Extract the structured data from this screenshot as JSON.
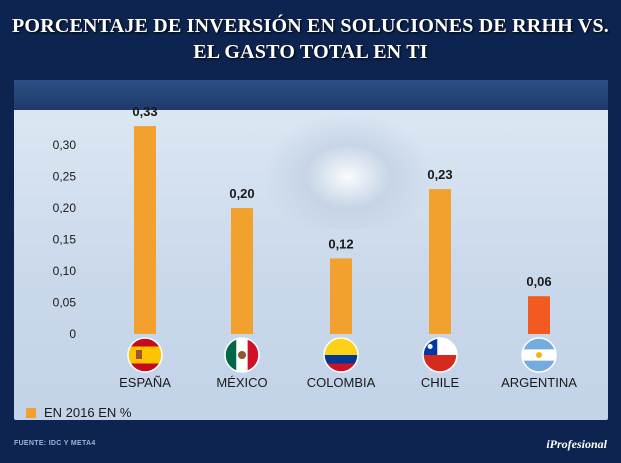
{
  "title": {
    "line1": "PORCENTAJE DE INVERSIÓN EN SOLUCIONES DE RRHH VS.",
    "line2": "EL GASTO TOTAL EN TI"
  },
  "legend": {
    "label": "EN 2016 EN %"
  },
  "footer": {
    "source_label": "FUENTE:",
    "source_text": "IDC Y META4",
    "brand": "iProfesional"
  },
  "colors": {
    "bar": "#f2a12e",
    "bar_highlight": "#f25a22",
    "axis_text": "#1a1a1a"
  },
  "chart_data": {
    "type": "bar",
    "title": "PORCENTAJE DE INVERSIÓN EN SOLUCIONES DE RRHH VS. EL GASTO TOTAL EN TI",
    "categories": [
      "ESPAÑA",
      "MÉXICO",
      "COLOMBIA",
      "CHILE",
      "ARGENTINA"
    ],
    "values": [
      0.33,
      0.2,
      0.12,
      0.23,
      0.06
    ],
    "value_labels": [
      "0,33",
      "0,20",
      "0,12",
      "0,23",
      "0,06"
    ],
    "series": [
      {
        "name": "EN 2016 EN %",
        "values": [
          0.33,
          0.2,
          0.12,
          0.23,
          0.06
        ]
      }
    ],
    "yticks": [
      0,
      0.05,
      0.1,
      0.15,
      0.2,
      0.25,
      0.3
    ],
    "ytick_labels": [
      "0",
      "0,05",
      "0,10",
      "0,15",
      "0,20",
      "0,25",
      "0,30"
    ],
    "ylim": [
      0,
      0.33
    ],
    "xlabel": "",
    "ylabel": "",
    "grid": false,
    "legend_position": "bottom-left",
    "flags": [
      "spain-flag-icon",
      "mexico-flag-icon",
      "colombia-flag-icon",
      "chile-flag-icon",
      "argentina-flag-icon"
    ],
    "highlighted_category": "ARGENTINA"
  }
}
